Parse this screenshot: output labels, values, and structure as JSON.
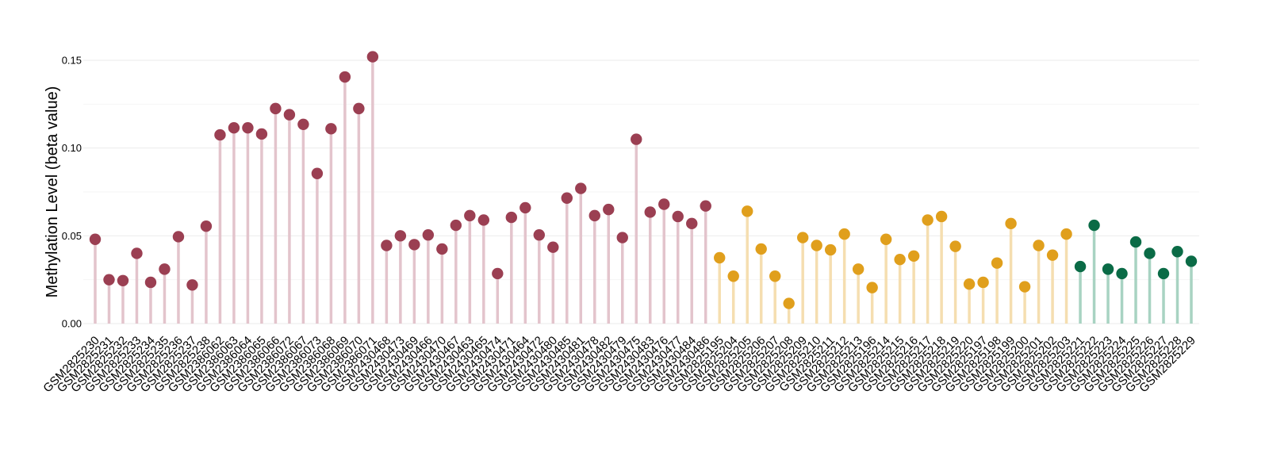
{
  "chart_data": {
    "type": "lollipop",
    "title": "",
    "xlabel": "",
    "ylabel": "Methylation Level (beta value)",
    "ylim": [
      0,
      0.15
    ],
    "yticks": [
      0.0,
      0.05,
      0.1,
      0.15
    ],
    "ytick_labels": [
      "0.00",
      "0.05",
      "0.10",
      "0.15"
    ],
    "grid": "horizontal",
    "legend": "none",
    "group_colors": {
      "group1": {
        "point": "#9b3f52",
        "stem": "#e3c4cc"
      },
      "group2": {
        "point": "#e09f1c",
        "stem": "#f5deb0"
      },
      "group3": {
        "point": "#0a6b46",
        "stem": "#a8d3c2"
      }
    },
    "points": [
      {
        "x": "GSM2825230",
        "y": 0.048,
        "group": "group1"
      },
      {
        "x": "GSM2825231",
        "y": 0.025,
        "group": "group1"
      },
      {
        "x": "GSM2825232",
        "y": 0.0245,
        "group": "group1"
      },
      {
        "x": "GSM2825233",
        "y": 0.04,
        "group": "group1"
      },
      {
        "x": "GSM2825234",
        "y": 0.0235,
        "group": "group1"
      },
      {
        "x": "GSM2825235",
        "y": 0.031,
        "group": "group1"
      },
      {
        "x": "GSM2825236",
        "y": 0.0495,
        "group": "group1"
      },
      {
        "x": "GSM2825237",
        "y": 0.022,
        "group": "group1"
      },
      {
        "x": "GSM2825238",
        "y": 0.0555,
        "group": "group1"
      },
      {
        "x": "GSM2386062",
        "y": 0.1075,
        "group": "group1"
      },
      {
        "x": "GSM2386063",
        "y": 0.1115,
        "group": "group1"
      },
      {
        "x": "GSM2386064",
        "y": 0.1115,
        "group": "group1"
      },
      {
        "x": "GSM2386065",
        "y": 0.108,
        "group": "group1"
      },
      {
        "x": "GSM2386066",
        "y": 0.1225,
        "group": "group1"
      },
      {
        "x": "GSM2386072",
        "y": 0.119,
        "group": "group1"
      },
      {
        "x": "GSM2386067",
        "y": 0.1135,
        "group": "group1"
      },
      {
        "x": "GSM2386073",
        "y": 0.0855,
        "group": "group1"
      },
      {
        "x": "GSM2386068",
        "y": 0.111,
        "group": "group1"
      },
      {
        "x": "GSM2386069",
        "y": 0.1405,
        "group": "group1"
      },
      {
        "x": "GSM2386070",
        "y": 0.1225,
        "group": "group1"
      },
      {
        "x": "GSM2386071",
        "y": 0.152,
        "group": "group1"
      },
      {
        "x": "GSM2430468",
        "y": 0.0445,
        "group": "group1"
      },
      {
        "x": "GSM2430473",
        "y": 0.05,
        "group": "group1"
      },
      {
        "x": "GSM2430469",
        "y": 0.045,
        "group": "group1"
      },
      {
        "x": "GSM2430466",
        "y": 0.0505,
        "group": "group1"
      },
      {
        "x": "GSM2430470",
        "y": 0.0425,
        "group": "group1"
      },
      {
        "x": "GSM2430467",
        "y": 0.056,
        "group": "group1"
      },
      {
        "x": "GSM2430463",
        "y": 0.0615,
        "group": "group1"
      },
      {
        "x": "GSM2430465",
        "y": 0.059,
        "group": "group1"
      },
      {
        "x": "GSM2430474",
        "y": 0.0285,
        "group": "group1"
      },
      {
        "x": "GSM2430471",
        "y": 0.0605,
        "group": "group1"
      },
      {
        "x": "GSM2430464",
        "y": 0.066,
        "group": "group1"
      },
      {
        "x": "GSM2430472",
        "y": 0.0505,
        "group": "group1"
      },
      {
        "x": "GSM2430480",
        "y": 0.0435,
        "group": "group1"
      },
      {
        "x": "GSM2430485",
        "y": 0.0715,
        "group": "group1"
      },
      {
        "x": "GSM2430481",
        "y": 0.077,
        "group": "group1"
      },
      {
        "x": "GSM2430478",
        "y": 0.0615,
        "group": "group1"
      },
      {
        "x": "GSM2430482",
        "y": 0.065,
        "group": "group1"
      },
      {
        "x": "GSM2430479",
        "y": 0.049,
        "group": "group1"
      },
      {
        "x": "GSM2430475",
        "y": 0.105,
        "group": "group1"
      },
      {
        "x": "GSM2430483",
        "y": 0.0635,
        "group": "group1"
      },
      {
        "x": "GSM2430476",
        "y": 0.068,
        "group": "group1"
      },
      {
        "x": "GSM2430477",
        "y": 0.061,
        "group": "group1"
      },
      {
        "x": "GSM2430484",
        "y": 0.057,
        "group": "group1"
      },
      {
        "x": "GSM2430486",
        "y": 0.067,
        "group": "group1"
      },
      {
        "x": "GSM2825195",
        "y": 0.0375,
        "group": "group2"
      },
      {
        "x": "GSM2825204",
        "y": 0.027,
        "group": "group2"
      },
      {
        "x": "GSM2825205",
        "y": 0.064,
        "group": "group2"
      },
      {
        "x": "GSM2825206",
        "y": 0.0425,
        "group": "group2"
      },
      {
        "x": "GSM2825207",
        "y": 0.027,
        "group": "group2"
      },
      {
        "x": "GSM2825208",
        "y": 0.0115,
        "group": "group2"
      },
      {
        "x": "GSM2825209",
        "y": 0.049,
        "group": "group2"
      },
      {
        "x": "GSM2825210",
        "y": 0.0445,
        "group": "group2"
      },
      {
        "x": "GSM2825211",
        "y": 0.042,
        "group": "group2"
      },
      {
        "x": "GSM2825212",
        "y": 0.051,
        "group": "group2"
      },
      {
        "x": "GSM2825213",
        "y": 0.031,
        "group": "group2"
      },
      {
        "x": "GSM2825196",
        "y": 0.0205,
        "group": "group2"
      },
      {
        "x": "GSM2825214",
        "y": 0.048,
        "group": "group2"
      },
      {
        "x": "GSM2825215",
        "y": 0.0365,
        "group": "group2"
      },
      {
        "x": "GSM2825216",
        "y": 0.0385,
        "group": "group2"
      },
      {
        "x": "GSM2825217",
        "y": 0.059,
        "group": "group2"
      },
      {
        "x": "GSM2825218",
        "y": 0.061,
        "group": "group2"
      },
      {
        "x": "GSM2825219",
        "y": 0.044,
        "group": "group2"
      },
      {
        "x": "GSM2825220",
        "y": 0.0225,
        "group": "group2"
      },
      {
        "x": "GSM2825197",
        "y": 0.0235,
        "group": "group2"
      },
      {
        "x": "GSM2825198",
        "y": 0.0345,
        "group": "group2"
      },
      {
        "x": "GSM2825199",
        "y": 0.057,
        "group": "group2"
      },
      {
        "x": "GSM2825200",
        "y": 0.021,
        "group": "group2"
      },
      {
        "x": "GSM2825201",
        "y": 0.0445,
        "group": "group2"
      },
      {
        "x": "GSM2825202",
        "y": 0.039,
        "group": "group2"
      },
      {
        "x": "GSM2825203",
        "y": 0.051,
        "group": "group2"
      },
      {
        "x": "GSM2825221",
        "y": 0.0325,
        "group": "group3"
      },
      {
        "x": "GSM2825222",
        "y": 0.056,
        "group": "group3"
      },
      {
        "x": "GSM2825223",
        "y": 0.031,
        "group": "group3"
      },
      {
        "x": "GSM2825224",
        "y": 0.0285,
        "group": "group3"
      },
      {
        "x": "GSM2825225",
        "y": 0.0465,
        "group": "group3"
      },
      {
        "x": "GSM2825226",
        "y": 0.04,
        "group": "group3"
      },
      {
        "x": "GSM2825227",
        "y": 0.0285,
        "group": "group3"
      },
      {
        "x": "GSM2825228",
        "y": 0.041,
        "group": "group3"
      },
      {
        "x": "GSM2825229",
        "y": 0.0355,
        "group": "group3"
      }
    ]
  }
}
